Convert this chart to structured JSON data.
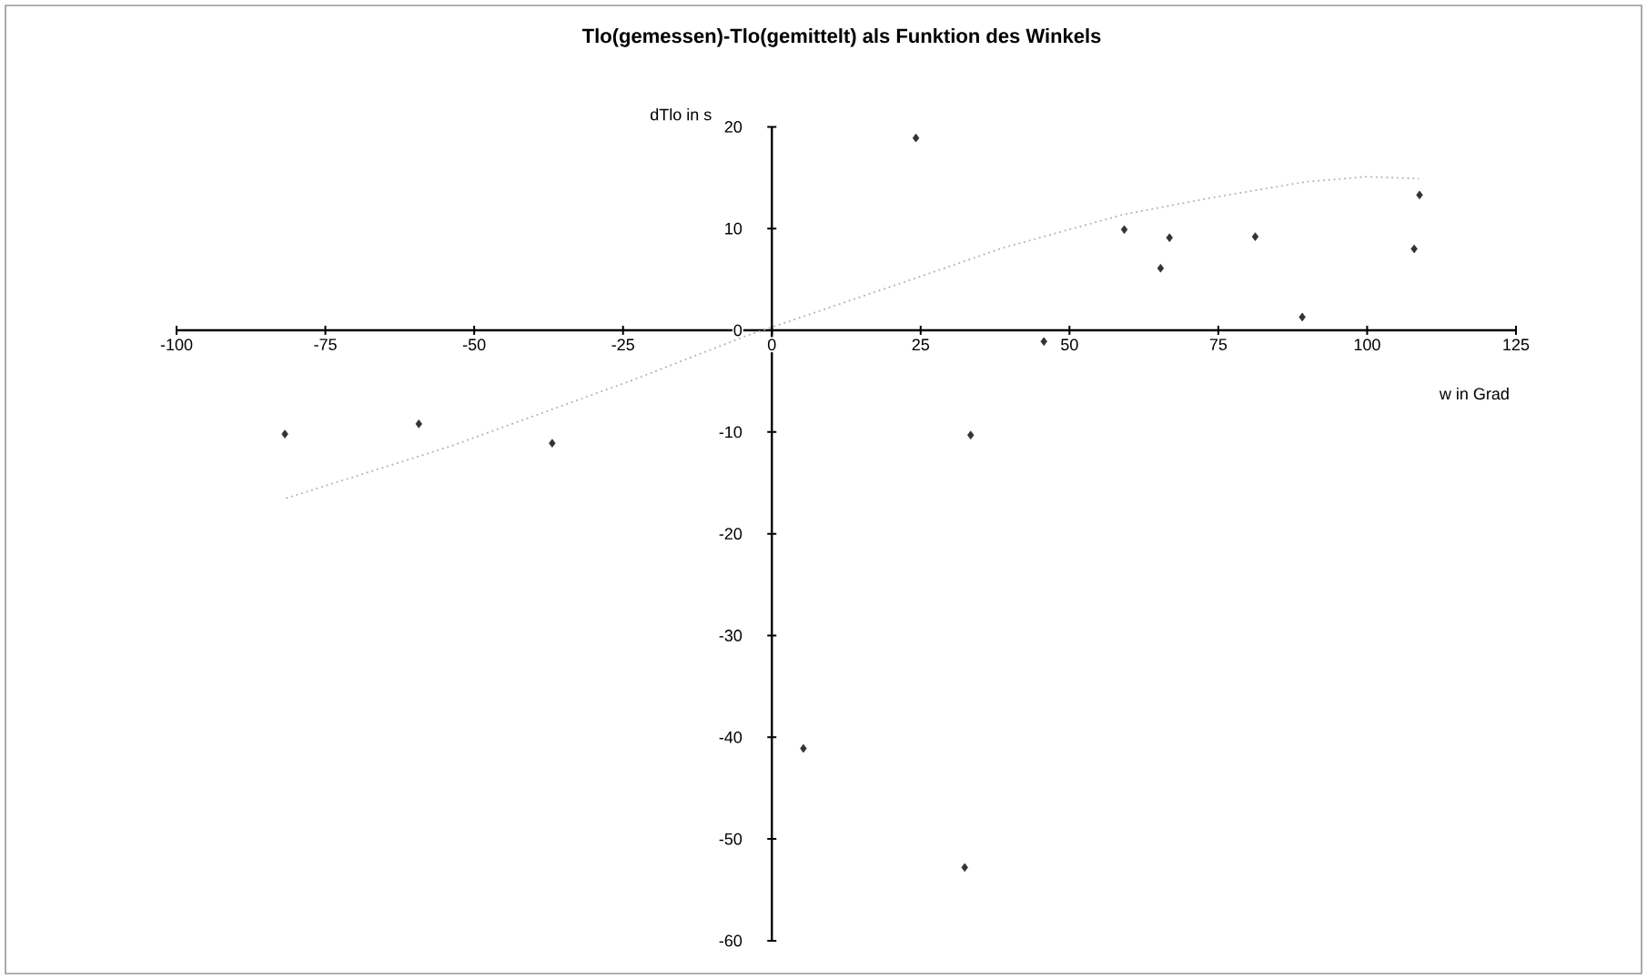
{
  "chart_data": {
    "type": "scatter",
    "title": "Tlo(gemessen)-Tlo(gemittelt) als Funktion des Winkels",
    "xlabel": "w in Grad",
    "ylabel": "dTlo in s",
    "xlim": [
      -100,
      125
    ],
    "ylim": [
      -60,
      20
    ],
    "xticks": [
      -100,
      -75,
      -50,
      -25,
      0,
      25,
      50,
      75,
      100,
      125
    ],
    "yticks": [
      -60,
      -50,
      -40,
      -30,
      -20,
      -10,
      0,
      10,
      20
    ],
    "series": [
      {
        "type": "scatter",
        "marker": "diamond",
        "color": "#333333",
        "x": [
          -81.8,
          -59.3,
          -36.9,
          5.3,
          24.2,
          32.4,
          33.4,
          45.7,
          59.2,
          65.3,
          66.8,
          81.2,
          89.1,
          107.9,
          108.8
        ],
        "values": [
          -10.2,
          -9.2,
          -11.1,
          -41.1,
          18.9,
          -52.8,
          -10.3,
          -1.1,
          9.9,
          6.1,
          9.1,
          9.2,
          1.3,
          8.0,
          13.3
        ]
      },
      {
        "type": "line",
        "line_style": "dotted",
        "color": "#b0b0b0",
        "x": [
          -81.6,
          -54,
          -23.4,
          -4.1,
          0,
          25.5,
          38.8,
          59.2,
          74.5,
          89.8,
          100,
          108.7
        ],
        "values": [
          -16.5,
          -11.4,
          -4.9,
          -0.5,
          0.3,
          5.4,
          8.1,
          11.4,
          13.1,
          14.6,
          15.1,
          14.9
        ]
      }
    ]
  }
}
